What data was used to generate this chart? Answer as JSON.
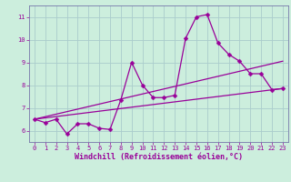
{
  "xlabel": "Windchill (Refroidissement éolien,°C)",
  "bg_color": "#cceedd",
  "grid_color": "#aacccc",
  "line_color": "#990099",
  "spine_color": "#7777aa",
  "xlim": [
    -0.5,
    23.5
  ],
  "ylim": [
    5.5,
    11.5
  ],
  "xticks": [
    0,
    1,
    2,
    3,
    4,
    5,
    6,
    7,
    8,
    9,
    10,
    11,
    12,
    13,
    14,
    15,
    16,
    17,
    18,
    19,
    20,
    21,
    22,
    23
  ],
  "yticks": [
    6,
    7,
    8,
    9,
    10,
    11
  ],
  "series1_x": [
    0,
    1,
    2,
    3,
    4,
    5,
    6,
    7,
    8,
    9,
    10,
    11,
    12,
    13,
    14,
    15,
    16,
    17,
    18,
    19,
    20,
    21,
    22,
    23
  ],
  "series1_y": [
    6.5,
    6.35,
    6.5,
    5.85,
    6.3,
    6.3,
    6.1,
    6.05,
    7.35,
    9.0,
    8.0,
    7.45,
    7.45,
    7.55,
    10.05,
    11.0,
    11.1,
    9.85,
    9.35,
    9.05,
    8.5,
    8.5,
    7.8,
    7.85
  ],
  "series2_x": [
    0,
    23
  ],
  "series2_y": [
    6.5,
    7.85
  ],
  "series3_x": [
    0,
    23
  ],
  "series3_y": [
    6.5,
    9.05
  ],
  "marker": "D",
  "marker_size": 2.5,
  "linewidth": 0.9,
  "tick_fontsize": 5.0,
  "label_fontsize": 6.0
}
